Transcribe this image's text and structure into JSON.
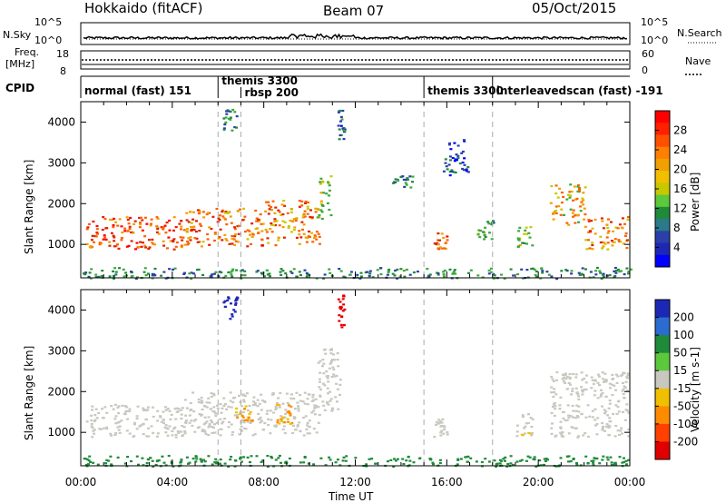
{
  "header": {
    "station": "Hokkaido (fitACF)",
    "beam": "Beam 07",
    "date": "05/Oct/2015"
  },
  "top_panels": {
    "nsky_label": "N.Sky",
    "nsky_ticks": [
      "10^5",
      "10^0"
    ],
    "nsearch_label": "N.Search",
    "nsearch_ticks": [
      "10^5",
      "10^0"
    ],
    "freq_label": "Freq.",
    "freq_unit": "[MHz]",
    "freq_ticks": [
      "18",
      "8"
    ],
    "nave_label": "Nave",
    "nave_ticks": [
      "60",
      "0"
    ],
    "cpid_label": "CPID"
  },
  "cpid_modes": [
    {
      "label": "normal (fast) 151",
      "start_hour": 0
    },
    {
      "label": "themis 3300",
      "start_hour": 6
    },
    {
      "label": "rbsp 200",
      "start_hour": 7
    },
    {
      "label": "themis 3300",
      "start_hour": 15
    },
    {
      "label": "interleavedscan (fast) -191",
      "start_hour": 18
    }
  ],
  "axes": {
    "xlabel": "Time UT",
    "x_ticks": [
      "00:00",
      "04:00",
      "08:00",
      "12:00",
      "16:00",
      "20:00",
      "00:00"
    ],
    "x_range_hours": [
      0,
      24
    ],
    "ylabel": "Slant Range [km]",
    "y_ticks": [
      "4000",
      "3000",
      "2000",
      "1000"
    ],
    "y_range_km": [
      180,
      4500
    ]
  },
  "chart_data": [
    {
      "type": "heatmap",
      "title": "",
      "xlabel": "Time UT",
      "ylabel": "Slant Range [km]",
      "colorbar_label": "Power [dB]",
      "colorbar_ticks": [
        "28",
        "24",
        "20",
        "16",
        "12",
        "8",
        "4"
      ],
      "value_range": [
        0,
        30
      ],
      "regions": [
        {
          "t0": 0.2,
          "t1": 4.5,
          "r0": 900,
          "r1": 1700,
          "value": 27
        },
        {
          "t0": 4.5,
          "t1": 8.0,
          "r0": 950,
          "r1": 1900,
          "value": 25
        },
        {
          "t0": 8.0,
          "t1": 10.4,
          "r0": 1000,
          "r1": 2100,
          "value": 24
        },
        {
          "t0": 10.3,
          "t1": 10.9,
          "r0": 1600,
          "r1": 2700,
          "value": 18
        },
        {
          "t0": 11.2,
          "t1": 11.5,
          "r0": 3600,
          "r1": 4400,
          "value": 10
        },
        {
          "t0": 6.2,
          "t1": 6.8,
          "r0": 3800,
          "r1": 4350,
          "value": 12
        },
        {
          "t0": 15.4,
          "t1": 16.0,
          "r0": 900,
          "r1": 1350,
          "value": 26
        },
        {
          "t0": 13.6,
          "t1": 14.6,
          "r0": 2400,
          "r1": 2700,
          "value": 11
        },
        {
          "t0": 15.8,
          "t1": 16.9,
          "r0": 2700,
          "r1": 3600,
          "value": 8
        },
        {
          "t0": 17.3,
          "t1": 18.0,
          "r0": 1100,
          "r1": 1600,
          "value": 14
        },
        {
          "t0": 19.0,
          "t1": 19.7,
          "r0": 900,
          "r1": 1500,
          "value": 18
        },
        {
          "t0": 20.5,
          "t1": 22.0,
          "r0": 1500,
          "r1": 2500,
          "value": 22
        },
        {
          "t0": 22.0,
          "t1": 23.9,
          "r0": 900,
          "r1": 1700,
          "value": 24
        },
        {
          "t0": 0.0,
          "t1": 24.0,
          "r0": 180,
          "r1": 450,
          "value": 12
        }
      ]
    },
    {
      "type": "heatmap",
      "title": "",
      "xlabel": "Time UT",
      "ylabel": "Slant Range [km]",
      "colorbar_label": "Velocity [m s-1]",
      "colorbar_ticks": [
        "200",
        "100",
        "50",
        "15",
        "-15",
        "-50",
        "-100",
        "-200"
      ],
      "value_range": [
        -250,
        250
      ],
      "regions": [
        {
          "t0": 0.2,
          "t1": 4.5,
          "r0": 900,
          "r1": 1700,
          "value": 0
        },
        {
          "t0": 4.5,
          "t1": 10.4,
          "r0": 950,
          "r1": 2000,
          "value": 0
        },
        {
          "t0": 10.3,
          "t1": 11.3,
          "r0": 1500,
          "r1": 3100,
          "value": 0
        },
        {
          "t0": 6.7,
          "t1": 7.5,
          "r0": 1300,
          "r1": 1700,
          "value": -50
        },
        {
          "t0": 8.5,
          "t1": 9.2,
          "r0": 1200,
          "r1": 1700,
          "value": -50
        },
        {
          "t0": 11.2,
          "t1": 11.5,
          "r0": 3600,
          "r1": 4400,
          "value": -200
        },
        {
          "t0": 6.2,
          "t1": 6.8,
          "r0": 3800,
          "r1": 4350,
          "value": 200
        },
        {
          "t0": 15.4,
          "t1": 16.0,
          "r0": 900,
          "r1": 1350,
          "value": 0
        },
        {
          "t0": 19.0,
          "t1": 19.7,
          "r0": 900,
          "r1": 1500,
          "value": -15
        },
        {
          "t0": 20.5,
          "t1": 23.9,
          "r0": 900,
          "r1": 2500,
          "value": 0
        },
        {
          "t0": 0.0,
          "t1": 24.0,
          "r0": 180,
          "r1": 450,
          "value": 50
        }
      ]
    }
  ]
}
